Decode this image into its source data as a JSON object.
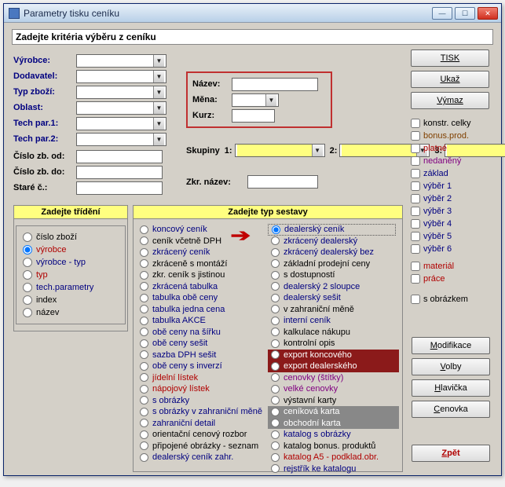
{
  "window": {
    "title": "Parametry tisku ceníku"
  },
  "criteria_bar": "Zadejte kritéria výběru z ceníku",
  "left_form": {
    "vyrobce": "Výrobce:",
    "dodavatel": "Dodavatel:",
    "typ_zbozi": "Typ zboží:",
    "oblast": "Oblast:",
    "techpar1": "Tech par.1:",
    "techpar2": "Tech par.2:",
    "cislo_od": "Číslo zb. od:",
    "cislo_do": "Číslo zb. do:",
    "stare_c": "Staré č.:"
  },
  "mid": {
    "nazev": "Název:",
    "mena": "Měna:",
    "kurz": "Kurz:"
  },
  "skupiny": {
    "label": "Skupiny",
    "n1": "1:",
    "n2": "2:",
    "n3": "3:"
  },
  "zkr_nazev": "Zkr. název:",
  "right_buttons": {
    "tisk": "TISK",
    "ukaz": "Ukaž",
    "vymaz": "Výmaz"
  },
  "chk": {
    "konstr": "konstr. celky",
    "bonus": "bonus.prod.",
    "platne": "platné",
    "nedaneny": "nedaněný",
    "zaklad": "základ",
    "v1": "výběr 1",
    "v2": "výběr 2",
    "v3": "výběr 3",
    "v4": "výběr 4",
    "v5": "výběr 5",
    "v6": "výběr 6",
    "material": "materiál",
    "prace": "práce",
    "obrazkem": "s obrázkem"
  },
  "sort": {
    "header": "Zadejte třídění",
    "items": [
      "číslo zboží",
      "výrobce",
      "výrobce - typ",
      "typ",
      "tech.parametry",
      "index",
      "název"
    ],
    "item_colors": [
      "#000",
      "#b00000",
      "#000080",
      "#b00000",
      "#000080",
      "#000",
      "#000"
    ],
    "selected": 1
  },
  "type": {
    "header": "Zadejte typ sestavy",
    "col1": [
      {
        "t": "koncový ceník",
        "c": "#000080"
      },
      {
        "t": "ceník včetně DPH",
        "c": "#000"
      },
      {
        "t": "zkrácený ceník",
        "c": "#000080"
      },
      {
        "t": "zkráceně s montáží",
        "c": "#000"
      },
      {
        "t": "zkr. ceník s jistinou",
        "c": "#000"
      },
      {
        "t": "zkrácená tabulka",
        "c": "#000080"
      },
      {
        "t": "tabulka obě ceny",
        "c": "#000080"
      },
      {
        "t": "tabulka jedna cena",
        "c": "#000080"
      },
      {
        "t": "tabulka AKCE",
        "c": "#000080"
      },
      {
        "t": "obě ceny na šířku",
        "c": "#000080"
      },
      {
        "t": "obě ceny sešit",
        "c": "#000080"
      },
      {
        "t": "sazba DPH sešit",
        "c": "#000080"
      },
      {
        "t": "obě ceny s inverzí",
        "c": "#000080"
      },
      {
        "t": "jídelní lístek",
        "c": "#b00000"
      },
      {
        "t": "nápojový lístek",
        "c": "#b00000"
      },
      {
        "t": "s obrázky",
        "c": "#000080"
      },
      {
        "t": "s obrázky v zahraniční měně",
        "c": "#000080"
      },
      {
        "t": "zahraniční detail",
        "c": "#000080"
      },
      {
        "t": "orientační cenový rozbor",
        "c": "#000"
      },
      {
        "t": "připojené obrázky - seznam",
        "c": "#000"
      },
      {
        "t": "dealerský ceník zahr.",
        "c": "#000080"
      }
    ],
    "col2": [
      {
        "t": "dealerský ceník",
        "c": "#000080",
        "sel": true
      },
      {
        "t": "zkrácený dealerský",
        "c": "#000080"
      },
      {
        "t": "zkrácený dealerský bez",
        "c": "#000080"
      },
      {
        "t": "základní prodejní ceny",
        "c": "#000"
      },
      {
        "t": "s dostupností",
        "c": "#000"
      },
      {
        "t": "dealerský 2 sloupce",
        "c": "#000080"
      },
      {
        "t": "dealerský sešit",
        "c": "#000080"
      },
      {
        "t": "v zahraniční měně",
        "c": "#000"
      },
      {
        "t": "interní ceník",
        "c": "#000080"
      },
      {
        "t": "kalkulace nákupu",
        "c": "#000"
      },
      {
        "t": "kontrolní opis",
        "c": "#000"
      },
      {
        "t": "export koncového",
        "c": "#fff",
        "bg": "#8b1a1a"
      },
      {
        "t": "export dealerského",
        "c": "#fff",
        "bg": "#8b1a1a"
      },
      {
        "t": "cenovky (štítky)",
        "c": "#800080"
      },
      {
        "t": "velké cenovky",
        "c": "#800080"
      },
      {
        "t": "výstavní karty",
        "c": "#000"
      },
      {
        "t": "ceníková karta",
        "c": "#fff",
        "bg": "#888"
      },
      {
        "t": "obchodní karta",
        "c": "#fff",
        "bg": "#888"
      },
      {
        "t": "katalog s obrázky",
        "c": "#000080"
      },
      {
        "t": "katalog bonus. produktů",
        "c": "#000"
      },
      {
        "t": "katalog A5 - podklad.obr.",
        "c": "#b00000"
      },
      {
        "t": "rejstřík ke katalogu",
        "c": "#000080"
      }
    ]
  },
  "btns2": {
    "modifikace": "Modifikace",
    "volby": "Volby",
    "hlavicka": "Hlavička",
    "cenovka": "Cenovka"
  },
  "back": "Zpět"
}
